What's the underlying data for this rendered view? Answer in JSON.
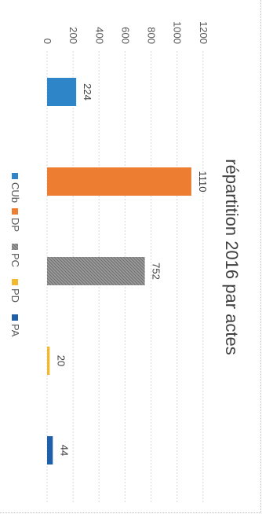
{
  "chart_data": {
    "type": "bar",
    "title": "répartition 2016 par actes",
    "categories": [
      "CUb",
      "DP",
      "PC",
      "PD",
      "PA"
    ],
    "values": [
      224,
      1110,
      752,
      20,
      44
    ],
    "colors": [
      "#2E86C8",
      "#ED7D31",
      "#8C8C8C",
      "#F2B82E",
      "#1F5FA8"
    ],
    "patterns": [
      "solid",
      "solid",
      "hatched",
      "solid",
      "solid"
    ],
    "ylim": [
      0,
      1200
    ],
    "yticks": [
      0,
      200,
      400,
      600,
      800,
      1000,
      1200
    ],
    "ytick_labels": [
      "0",
      "200",
      "400",
      "600",
      "800",
      "1000",
      "1200"
    ],
    "grid": true,
    "legend": "bottom"
  }
}
